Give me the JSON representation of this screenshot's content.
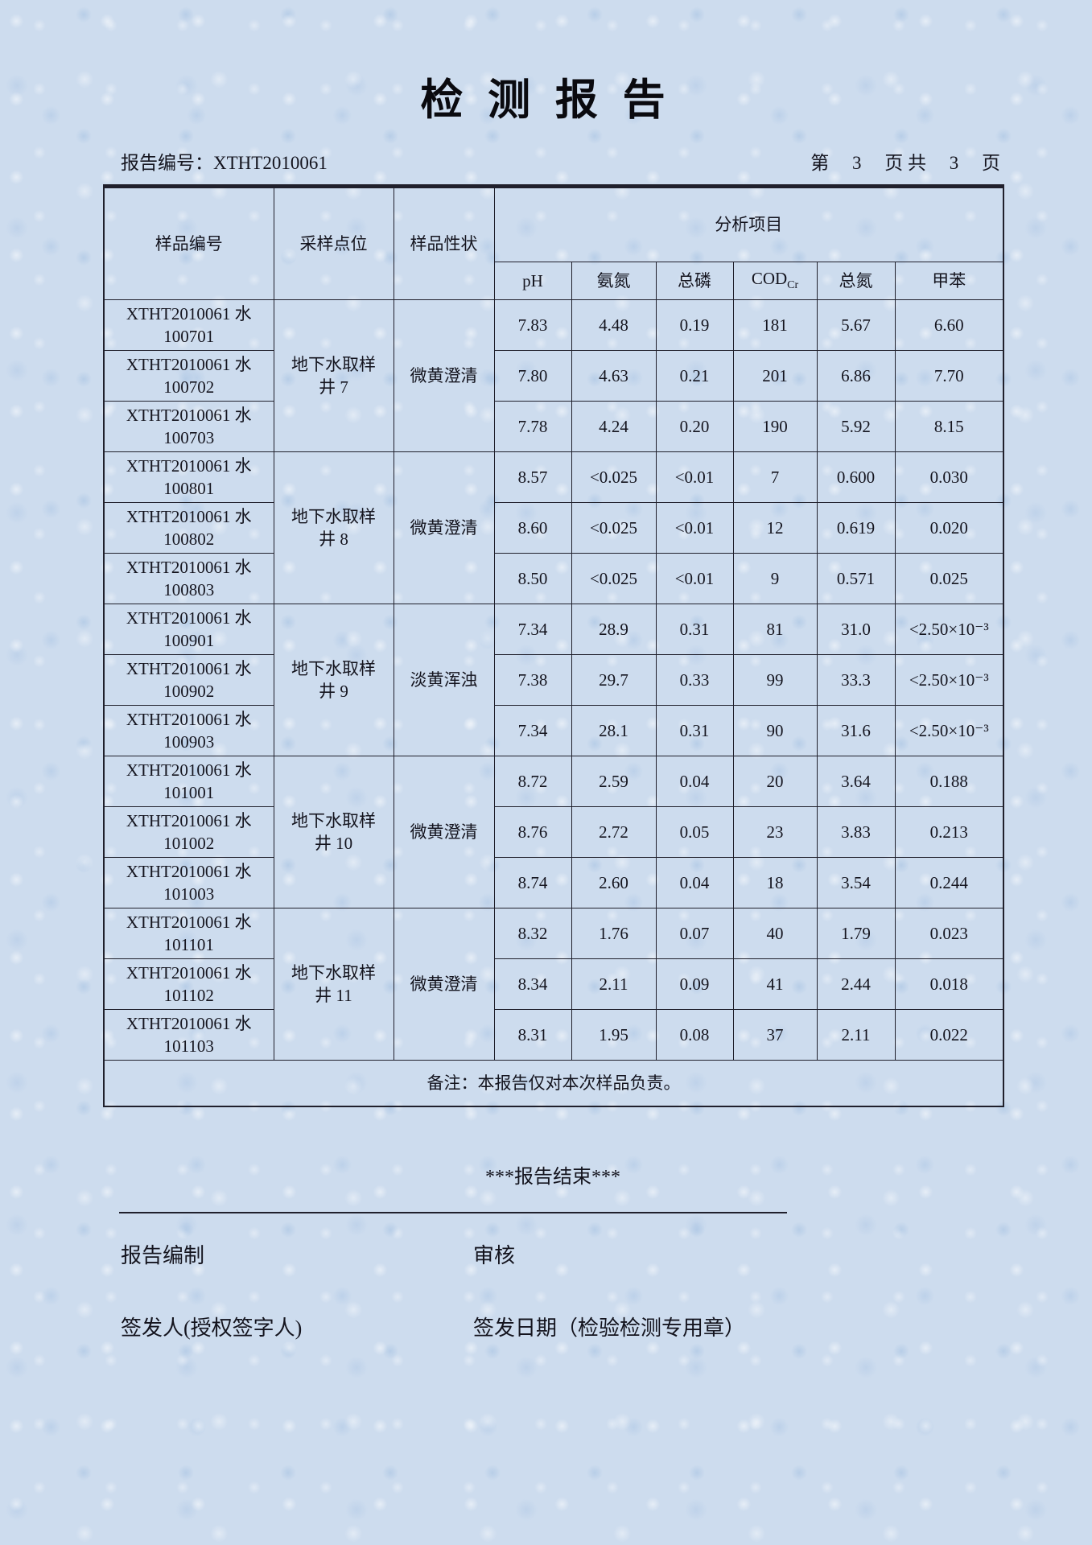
{
  "page": {
    "title": "检 测 报 告",
    "report_no": "报告编号：XTHT2010061",
    "page_indicator": "第　 3 　页 共　 3 　页"
  },
  "table": {
    "col_sample_id": "样品编号",
    "col_sampling_point": "采样点位",
    "col_character": "样品性状",
    "analysis_group_label": "分析项目",
    "param_ph": "pH",
    "param_ammonia_nitrogen": "氨氮",
    "param_total_phosphorus": "总磷",
    "param_cod_main": "COD",
    "param_cod_sub": "Cr",
    "param_total_nitrogen": "总氮",
    "param_toluene": "甲苯",
    "note": "备注：本报告仅对本次样品负责。",
    "groups": [
      {
        "sampling_point": "地下水取样\n井 7",
        "character": "微黄澄清",
        "rows": [
          {
            "id": "XTHT2010061 水\n100701",
            "values": [
              "7.83",
              "4.48",
              "0.19",
              "181",
              "5.67",
              "6.60"
            ]
          },
          {
            "id": "XTHT2010061 水\n100702",
            "values": [
              "7.80",
              "4.63",
              "0.21",
              "201",
              "6.86",
              "7.70"
            ]
          },
          {
            "id": "XTHT2010061 水\n100703",
            "values": [
              "7.78",
              "4.24",
              "0.20",
              "190",
              "5.92",
              "8.15"
            ]
          }
        ]
      },
      {
        "sampling_point": "地下水取样\n井 8",
        "character": "微黄澄清",
        "rows": [
          {
            "id": "XTHT2010061 水\n100801",
            "values": [
              "8.57",
              "<0.025",
              "<0.01",
              "7",
              "0.600",
              "0.030"
            ]
          },
          {
            "id": "XTHT2010061 水\n100802",
            "values": [
              "8.60",
              "<0.025",
              "<0.01",
              "12",
              "0.619",
              "0.020"
            ]
          },
          {
            "id": "XTHT2010061 水\n100803",
            "values": [
              "8.50",
              "<0.025",
              "<0.01",
              "9",
              "0.571",
              "0.025"
            ]
          }
        ]
      },
      {
        "sampling_point": "地下水取样\n井 9",
        "character": "淡黄浑浊",
        "rows": [
          {
            "id": "XTHT2010061 水\n100901",
            "values": [
              "7.34",
              "28.9",
              "0.31",
              "81",
              "31.0",
              "<2.50×10⁻³"
            ]
          },
          {
            "id": "XTHT2010061 水\n100902",
            "values": [
              "7.38",
              "29.7",
              "0.33",
              "99",
              "33.3",
              "<2.50×10⁻³"
            ]
          },
          {
            "id": "XTHT2010061 水\n100903",
            "values": [
              "7.34",
              "28.1",
              "0.31",
              "90",
              "31.6",
              "<2.50×10⁻³"
            ]
          }
        ]
      },
      {
        "sampling_point": "地下水取样\n井 10",
        "character": "微黄澄清",
        "rows": [
          {
            "id": "XTHT2010061 水\n101001",
            "values": [
              "8.72",
              "2.59",
              "0.04",
              "20",
              "3.64",
              "0.188"
            ]
          },
          {
            "id": "XTHT2010061 水\n101002",
            "values": [
              "8.76",
              "2.72",
              "0.05",
              "23",
              "3.83",
              "0.213"
            ]
          },
          {
            "id": "XTHT2010061 水\n101003",
            "values": [
              "8.74",
              "2.60",
              "0.04",
              "18",
              "3.54",
              "0.244"
            ]
          }
        ]
      },
      {
        "sampling_point": "地下水取样\n井 11",
        "character": "微黄澄清",
        "rows": [
          {
            "id": "XTHT2010061 水\n101101",
            "values": [
              "8.32",
              "1.76",
              "0.07",
              "40",
              "1.79",
              "0.023"
            ]
          },
          {
            "id": "XTHT2010061 水\n101102",
            "values": [
              "8.34",
              "2.11",
              "0.09",
              "41",
              "2.44",
              "0.018"
            ]
          },
          {
            "id": "XTHT2010061 水\n101103",
            "values": [
              "8.31",
              "1.95",
              "0.08",
              "37",
              "2.11",
              "0.022"
            ]
          }
        ]
      }
    ]
  },
  "footer": {
    "end_text": "***报告结束***",
    "prepared_label": "报告编制",
    "review_label": "审核",
    "issuer_label": "签发人(授权签字人)",
    "issue_date_label": "签发日期（检验检测专用章）"
  }
}
